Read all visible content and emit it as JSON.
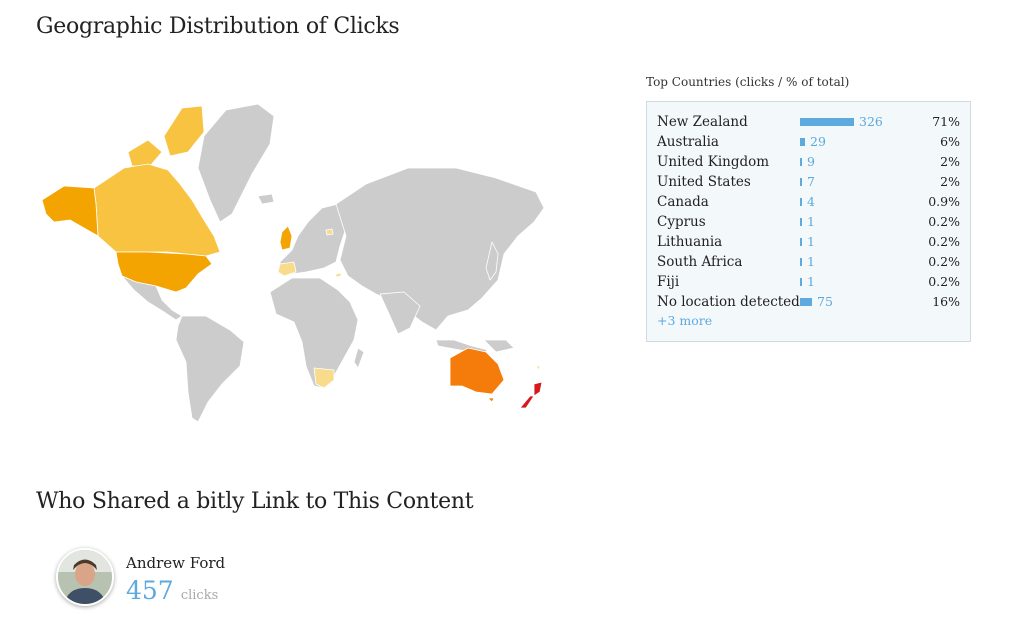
{
  "geo": {
    "title": "Geographic Distribution of Clicks",
    "map": {
      "base_color": "#cccccc",
      "border_color": "#ffffff",
      "highlighted_countries": [
        {
          "country": "New Zealand",
          "color": "#d7191c"
        },
        {
          "country": "Australia",
          "color": "#f57c0a"
        },
        {
          "country": "United States",
          "color": "#f3a400"
        },
        {
          "country": "Canada",
          "color": "#f7c340"
        },
        {
          "country": "United Kingdom",
          "color": "#f3a400"
        },
        {
          "country": "South Africa",
          "color": "#f8dc8c"
        },
        {
          "country": "Lithuania",
          "color": "#f8dc8c"
        },
        {
          "country": "Fiji",
          "color": "#f8dc8c"
        },
        {
          "country": "Cyprus",
          "color": "#f8dc8c"
        }
      ]
    }
  },
  "top_countries": {
    "caption": "Top Countries (clicks / % of total)",
    "rows": [
      {
        "name": "New Zealand",
        "clicks": 326,
        "clicks_label": "326",
        "pct": "71%"
      },
      {
        "name": "Australia",
        "clicks": 29,
        "clicks_label": "29",
        "pct": "6%"
      },
      {
        "name": "United Kingdom",
        "clicks": 9,
        "clicks_label": "9",
        "pct": "2%"
      },
      {
        "name": "United States",
        "clicks": 7,
        "clicks_label": "7",
        "pct": "2%"
      },
      {
        "name": "Canada",
        "clicks": 4,
        "clicks_label": "4",
        "pct": "0.9%"
      },
      {
        "name": "Cyprus",
        "clicks": 1,
        "clicks_label": "1",
        "pct": "0.2%"
      },
      {
        "name": "Lithuania",
        "clicks": 1,
        "clicks_label": "1",
        "pct": "0.2%"
      },
      {
        "name": "South Africa",
        "clicks": 1,
        "clicks_label": "1",
        "pct": "0.2%"
      },
      {
        "name": "Fiji",
        "clicks": 1,
        "clicks_label": "1",
        "pct": "0.2%"
      },
      {
        "name": "No location detected",
        "clicks": 75,
        "clicks_label": "75",
        "pct": "16%"
      }
    ],
    "more_label": "+3 more",
    "bar_color": "#5ea9dd"
  },
  "shared": {
    "title": "Who Shared a bitly Link to This Content",
    "sharer": {
      "name": "Andrew Ford",
      "clicks": "457",
      "clicks_label": "clicks"
    }
  }
}
